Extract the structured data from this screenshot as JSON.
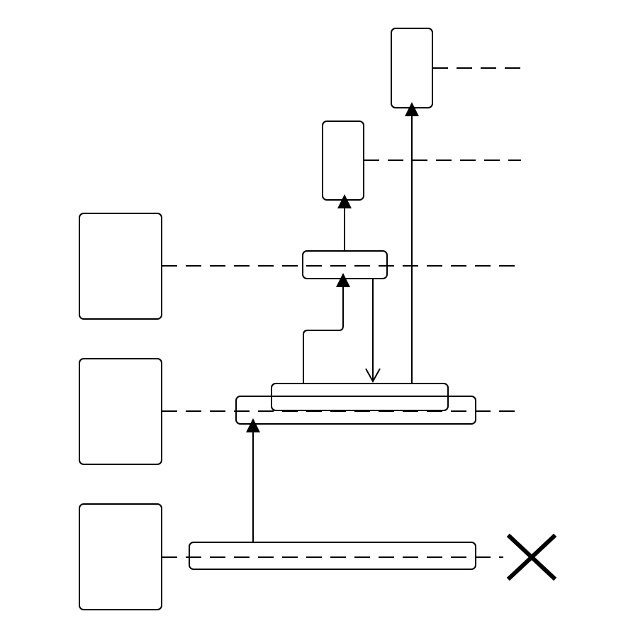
{
  "colors": {
    "background": "#ffffff",
    "stroke": "#000000"
  },
  "diagram": {
    "type": "lifeline-activation-diagram",
    "lifelines": [
      {
        "id": "lifeline-1",
        "label": "",
        "terminated": true
      },
      {
        "id": "lifeline-2",
        "label": ""
      },
      {
        "id": "lifeline-3",
        "label": ""
      },
      {
        "id": "lifeline-4",
        "label": ""
      },
      {
        "id": "lifeline-5",
        "label": ""
      }
    ],
    "participant_boxes": [
      {
        "id": "participant-box-1",
        "label": ""
      },
      {
        "id": "participant-box-2",
        "label": ""
      },
      {
        "id": "participant-box-3",
        "label": ""
      },
      {
        "id": "participant-box-4",
        "label": ""
      },
      {
        "id": "participant-box-5",
        "label": ""
      }
    ],
    "activation_bars": [
      {
        "id": "activation-bar-1",
        "label": ""
      },
      {
        "id": "activation-bar-2",
        "label": ""
      },
      {
        "id": "activation-bar-3",
        "label": ""
      },
      {
        "id": "activation-bar-4",
        "label": ""
      }
    ],
    "messages": [
      {
        "id": "message-1",
        "label": "",
        "arrowhead": "filled"
      },
      {
        "id": "message-2",
        "label": "",
        "arrowhead": "filled"
      },
      {
        "id": "message-3",
        "label": "",
        "arrowhead": "filled"
      },
      {
        "id": "message-4",
        "label": "",
        "arrowhead": "open"
      },
      {
        "id": "message-5",
        "label": "",
        "arrowhead": "filled"
      }
    ],
    "destruction_marker": {
      "id": "destruction-x",
      "label": ""
    }
  }
}
